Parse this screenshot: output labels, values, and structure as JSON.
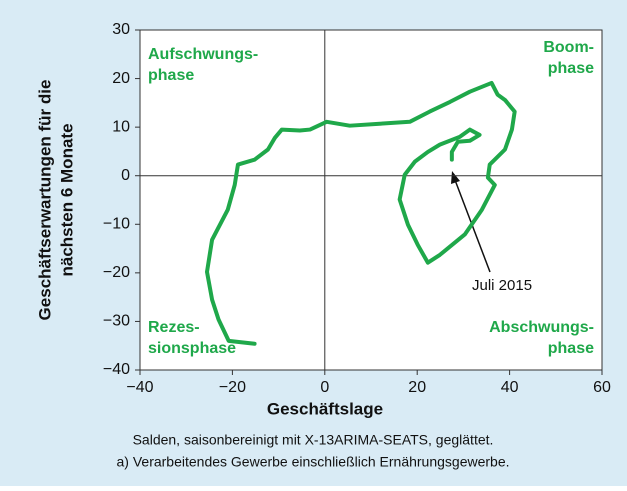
{
  "chart_data": {
    "type": "line",
    "xlabel": "Geschäftslage",
    "ylabel": [
      "Geschäftserwartungen für die",
      "nächsten 6 Monate"
    ],
    "xlim": [
      -40,
      60
    ],
    "xticks": [
      {
        "value": -40,
        "label": "−40"
      },
      {
        "value": -20,
        "label": "−20"
      },
      0,
      20,
      40,
      60
    ],
    "ylim": [
      -40,
      30
    ],
    "yticks": [
      {
        "value": -40,
        "label": "−40"
      },
      {
        "value": -30,
        "label": "−30"
      },
      {
        "value": -20,
        "label": "−20"
      },
      {
        "value": -10,
        "label": "−10"
      },
      0,
      10,
      20,
      30
    ],
    "series": [
      {
        "color": "#1fa84a",
        "x": [
          -15.2,
          -20.8,
          -23,
          -24.4,
          -25.5,
          -24.4,
          -21,
          -19.5,
          -18.8,
          -15.2,
          -12.3,
          -10.8,
          -9.3,
          -5.4,
          -3.2,
          0.4,
          5.4,
          11.9,
          18.4,
          22.7,
          27.1,
          31.4,
          36.1,
          37.4,
          39,
          41.1,
          40.5,
          39,
          35.7,
          35.3,
          36.8,
          34,
          30.3,
          24.9,
          22.3,
          20.1,
          18,
          16.2,
          17.3,
          19.5,
          22.3,
          24.9,
          29.2,
          31.4,
          33.5,
          31.4,
          28.8,
          27.5,
          27.5
        ],
        "values": [
          -34.6,
          -34,
          -29.6,
          -25.5,
          -19.8,
          -13.2,
          -7,
          -1.9,
          2.3,
          3.3,
          5.4,
          7.8,
          9.5,
          9.3,
          9.5,
          11.1,
          10.3,
          10.7,
          11.1,
          13.2,
          15.2,
          17.3,
          19.1,
          16.7,
          15.6,
          13.2,
          9.5,
          5.4,
          2.3,
          -0.4,
          -1.9,
          -7,
          -12.1,
          -16.3,
          -17.9,
          -14.2,
          -10.1,
          -4.9,
          0.2,
          2.9,
          4.9,
          6.4,
          8,
          9.5,
          8.4,
          7.2,
          7,
          4.9,
          3.3
        ]
      }
    ],
    "quadrant_labels": [
      [
        "Aufschwungs-",
        "phase"
      ],
      [
        "Boom-",
        "phase"
      ],
      [
        "Rezes-",
        "sionsphase"
      ],
      [
        "Abschwungs-",
        "phase"
      ]
    ],
    "annotation": "Juli 2015",
    "caption": [
      "Salden, saisonbereinigt mit X-13ARIMA-SEATS, geglättet.",
      "a) Verarbeitendes Gewerbe einschließlich Ernährungsgewerbe."
    ]
  }
}
